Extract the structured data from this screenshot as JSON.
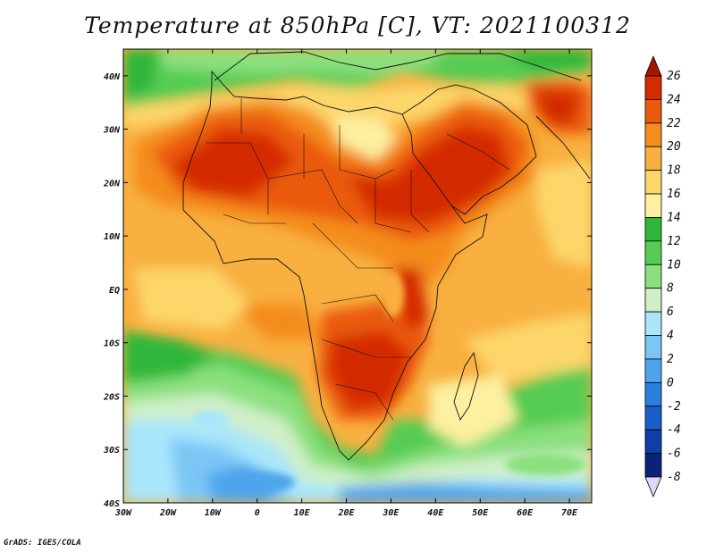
{
  "title": "Temperature at 850hPa [C], VT: 2021100312",
  "credit": "GrADS: IGES/COLA",
  "map": {
    "variable": "Temperature at 850hPa",
    "units": "C",
    "valid_time": "2021100312",
    "lon_range": [
      -30,
      75
    ],
    "lat_range": [
      -40,
      45
    ],
    "lon_ticks": [
      "30W",
      "20W",
      "10W",
      "0",
      "10E",
      "20E",
      "30E",
      "40E",
      "50E",
      "60E",
      "70E"
    ],
    "lat_ticks": [
      "40N",
      "30N",
      "20N",
      "10N",
      "EQ",
      "10S",
      "20S",
      "30S",
      "40S"
    ]
  },
  "colorbar": {
    "levels": [
      "26",
      "24",
      "22",
      "20",
      "18",
      "16",
      "14",
      "12",
      "10",
      "8",
      "6",
      "4",
      "2",
      "0",
      "-2",
      "-4",
      "-6",
      "-8"
    ],
    "colors": [
      "#a81400",
      "#d42b00",
      "#ea5a0c",
      "#f48c1e",
      "#f8b040",
      "#fcd66a",
      "#fdf0a0",
      "#2fb73a",
      "#56cc52",
      "#8be07e",
      "#cfefc8",
      "#a9e6fb",
      "#7bc6f5",
      "#4fa5ec",
      "#2c80dd",
      "#1a5ec9",
      "#0e3ea8",
      "#0a2278",
      "#ddd8f3"
    ]
  }
}
